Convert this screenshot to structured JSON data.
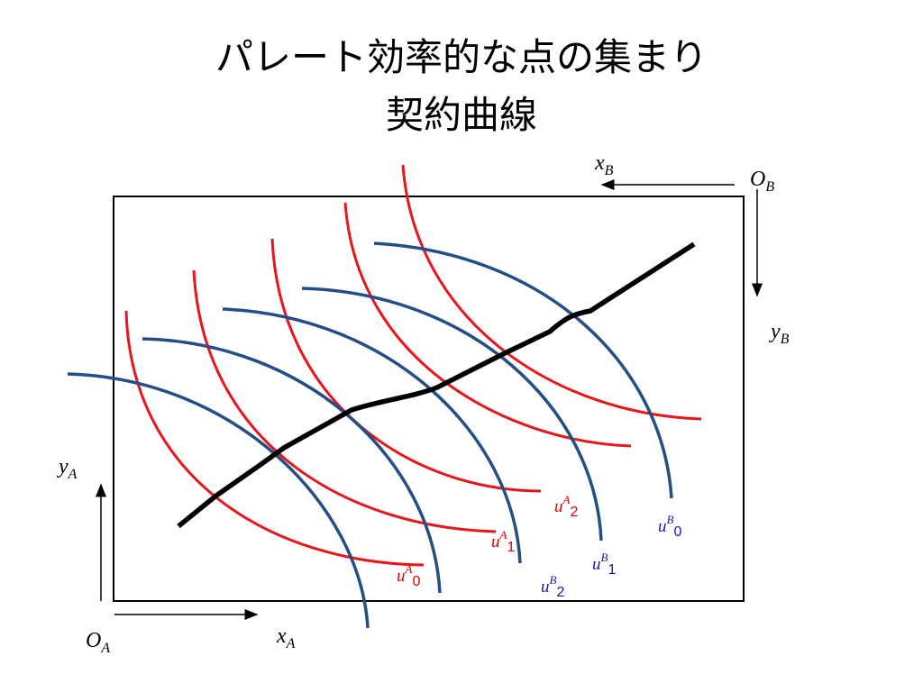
{
  "title": {
    "line1": "パレート効率的な点の集まり",
    "line2": "契約曲線"
  },
  "axes": {
    "origin_b": {
      "base": "O",
      "sub": "B"
    },
    "x_b": {
      "base": "x",
      "sub": "B"
    },
    "y_b": {
      "base": "y",
      "sub": "B"
    },
    "origin_a": {
      "base": "O",
      "sub": "A"
    },
    "x_a": {
      "base": "x",
      "sub": "A"
    },
    "y_a": {
      "base": "y",
      "sub": "A"
    }
  },
  "curves": {
    "a": [
      {
        "base": "u",
        "sup": "A",
        "sub": "0"
      },
      {
        "base": "u",
        "sup": "A",
        "sub": "1"
      },
      {
        "base": "u",
        "sup": "A",
        "sub": "2"
      }
    ],
    "b": [
      {
        "base": "u",
        "sup": "B",
        "sub": "0"
      },
      {
        "base": "u",
        "sup": "B",
        "sub": "1"
      },
      {
        "base": "u",
        "sup": "B",
        "sub": "2"
      }
    ]
  }
}
